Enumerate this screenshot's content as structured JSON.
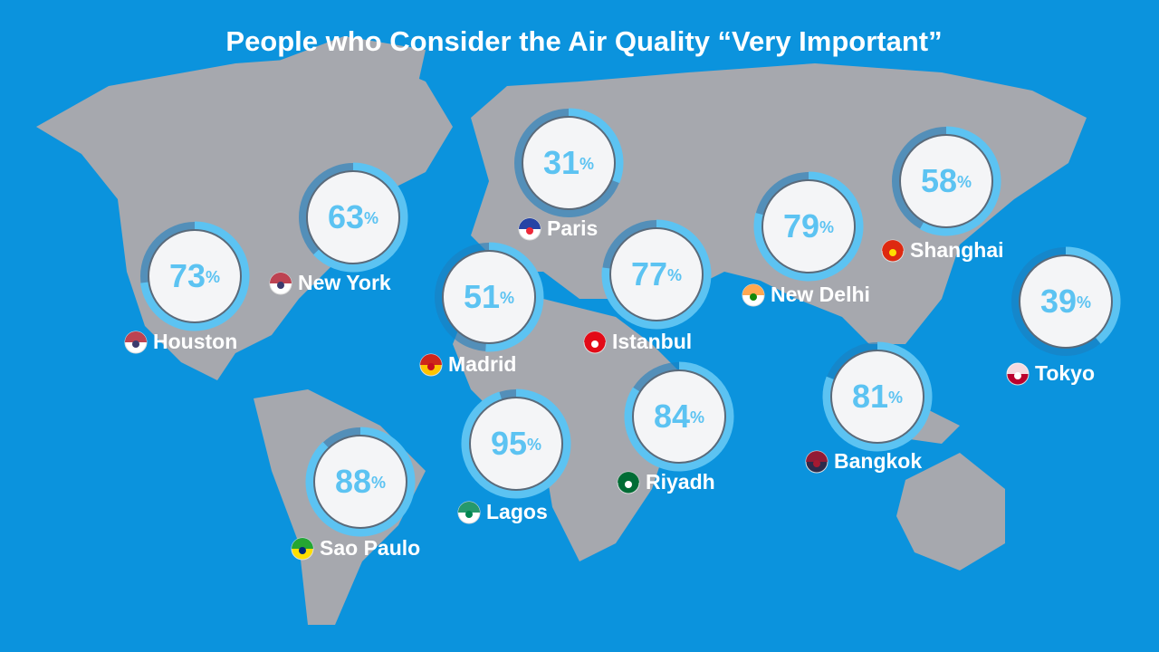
{
  "chart_data": {
    "type": "ring",
    "title": "People who Consider the Air Quality “Very Important”",
    "categories": [
      "Houston",
      "New York",
      "Paris",
      "Madrid",
      "Istanbul",
      "New Delhi",
      "Shanghai",
      "Tokyo",
      "Bangkok",
      "Riyadh",
      "Lagos",
      "Sao Paulo"
    ],
    "values": [
      73,
      63,
      31,
      51,
      77,
      79,
      58,
      39,
      81,
      84,
      95,
      88
    ],
    "value_labels": [
      "73%",
      "63%",
      "31%",
      "51%",
      "77%",
      "79%",
      "58%",
      "39%",
      "81%",
      "84%",
      "95%",
      "88%"
    ],
    "color": "#5cc3f2"
  }
}
